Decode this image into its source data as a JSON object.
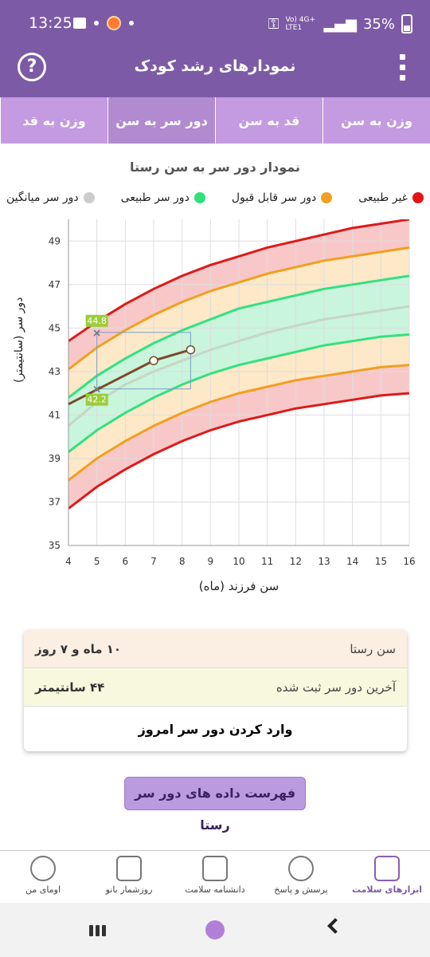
{
  "status": {
    "time": "13:25",
    "network": "Vo) 4G+ LTE1",
    "battery": "35%"
  },
  "appbar": {
    "title": "نمودارهای رشد کودک",
    "help_icon": "help-circle-icon",
    "menu_icon": "more-vertical-icon"
  },
  "tabs": [
    {
      "label": "وزن به سن",
      "active": false
    },
    {
      "label": "قد به سن",
      "active": false
    },
    {
      "label": "دور سر به سن",
      "active": true
    },
    {
      "label": "وزن به قد",
      "active": false
    }
  ],
  "chart_title": "نمودار دور سر به سن رستا",
  "legend": [
    {
      "label": "غیر طبیعی",
      "color": "#e01515"
    },
    {
      "label": "دور سر قابل قبول",
      "color": "#f0a020"
    },
    {
      "label": "دور سر طبیعی",
      "color": "#2ee07a"
    },
    {
      "label": "دور سر میانگین",
      "color": "#cccccc"
    }
  ],
  "chart_data": {
    "type": "line",
    "xlabel": "سن فرزند (ماه)",
    "ylabel": "دور سر (سانتیمتر)",
    "xlim": [
      4,
      16
    ],
    "ylim": [
      35,
      50
    ],
    "x_ticks": [
      4,
      5,
      6,
      7,
      8,
      9,
      10,
      11,
      12,
      13,
      14,
      15,
      16
    ],
    "y_ticks": [
      35,
      37,
      39,
      41,
      43,
      45,
      47,
      49
    ],
    "curves": {
      "red_upper": [
        [
          4,
          44.4
        ],
        [
          5,
          45.3
        ],
        [
          6,
          46.1
        ],
        [
          7,
          46.8
        ],
        [
          8,
          47.4
        ],
        [
          9,
          47.9
        ],
        [
          10,
          48.3
        ],
        [
          11,
          48.7
        ],
        [
          12,
          49.0
        ],
        [
          13,
          49.3
        ],
        [
          14,
          49.6
        ],
        [
          15,
          49.8
        ],
        [
          16,
          50.0
        ]
      ],
      "orange_upper": [
        [
          4,
          43.1
        ],
        [
          5,
          44.1
        ],
        [
          6,
          44.9
        ],
        [
          7,
          45.6
        ],
        [
          8,
          46.2
        ],
        [
          9,
          46.7
        ],
        [
          10,
          47.1
        ],
        [
          11,
          47.5
        ],
        [
          12,
          47.8
        ],
        [
          13,
          48.1
        ],
        [
          14,
          48.3
        ],
        [
          15,
          48.5
        ],
        [
          16,
          48.7
        ]
      ],
      "green_upper": [
        [
          4,
          41.8
        ],
        [
          5,
          42.8
        ],
        [
          6,
          43.6
        ],
        [
          7,
          44.3
        ],
        [
          8,
          44.9
        ],
        [
          9,
          45.4
        ],
        [
          10,
          45.9
        ],
        [
          11,
          46.2
        ],
        [
          12,
          46.5
        ],
        [
          13,
          46.8
        ],
        [
          14,
          47.0
        ],
        [
          15,
          47.2
        ],
        [
          16,
          47.4
        ]
      ],
      "median": [
        [
          4,
          40.5
        ],
        [
          5,
          41.6
        ],
        [
          6,
          42.4
        ],
        [
          7,
          43.0
        ],
        [
          8,
          43.5
        ],
        [
          9,
          44.0
        ],
        [
          10,
          44.4
        ],
        [
          11,
          44.8
        ],
        [
          12,
          45.1
        ],
        [
          13,
          45.4
        ],
        [
          14,
          45.6
        ],
        [
          15,
          45.8
        ],
        [
          16,
          46.0
        ]
      ],
      "green_lower": [
        [
          4,
          39.3
        ],
        [
          5,
          40.3
        ],
        [
          6,
          41.1
        ],
        [
          7,
          41.8
        ],
        [
          8,
          42.4
        ],
        [
          9,
          42.9
        ],
        [
          10,
          43.3
        ],
        [
          11,
          43.6
        ],
        [
          12,
          43.9
        ],
        [
          13,
          44.2
        ],
        [
          14,
          44.4
        ],
        [
          15,
          44.6
        ],
        [
          16,
          44.7
        ]
      ],
      "orange_lower": [
        [
          4,
          38.0
        ],
        [
          5,
          39.0
        ],
        [
          6,
          39.8
        ],
        [
          7,
          40.5
        ],
        [
          8,
          41.1
        ],
        [
          9,
          41.6
        ],
        [
          10,
          42.0
        ],
        [
          11,
          42.3
        ],
        [
          12,
          42.6
        ],
        [
          13,
          42.8
        ],
        [
          14,
          43.0
        ],
        [
          15,
          43.2
        ],
        [
          16,
          43.3
        ]
      ],
      "red_lower": [
        [
          4,
          36.7
        ],
        [
          5,
          37.7
        ],
        [
          6,
          38.5
        ],
        [
          7,
          39.2
        ],
        [
          8,
          39.8
        ],
        [
          9,
          40.3
        ],
        [
          10,
          40.7
        ],
        [
          11,
          41.0
        ],
        [
          12,
          41.3
        ],
        [
          13,
          41.5
        ],
        [
          14,
          41.7
        ],
        [
          15,
          41.9
        ],
        [
          16,
          42.0
        ]
      ]
    },
    "child_series": [
      [
        4,
        41.5
      ],
      [
        7,
        43.5
      ],
      [
        8.3,
        44.0
      ]
    ],
    "markers": [
      {
        "x": 5,
        "y": 44.8,
        "label": "44.8"
      },
      {
        "x": 5,
        "y": 42.2,
        "label": "42.2"
      }
    ],
    "band_colors": {
      "red": "#f8c8c8",
      "orange": "#fde8c8",
      "green": "#c8f5dc"
    },
    "line_colors": {
      "red": "#dd1a1a",
      "orange": "#f0a020",
      "green": "#35e080",
      "median": "#c6d6c6",
      "child": "#7a4a2a"
    }
  },
  "summary": {
    "age_label": "سن رستا",
    "age_value": "۱۰ ماه و ۷ روز",
    "last_label": "آخرین دور سر ثبت شده",
    "last_value": "۴۴ سانتیمتر",
    "enter_today": "وارد کردن دور سر امروز"
  },
  "list_button": "فهرست داده های دور سر رستا",
  "bottom_nav": [
    {
      "label": "ابزارهای سلامت",
      "icon": "health-kit-icon",
      "active": true
    },
    {
      "label": "پرسش و پاسخ",
      "icon": "question-bubble-icon",
      "active": false
    },
    {
      "label": "دانشنامه سلامت",
      "icon": "encyclopedia-icon",
      "active": false
    },
    {
      "label": "روزشمار بانو",
      "icon": "calendar-icon",
      "active": false
    },
    {
      "label": "اومای من",
      "icon": "profile-icon",
      "active": false
    }
  ]
}
